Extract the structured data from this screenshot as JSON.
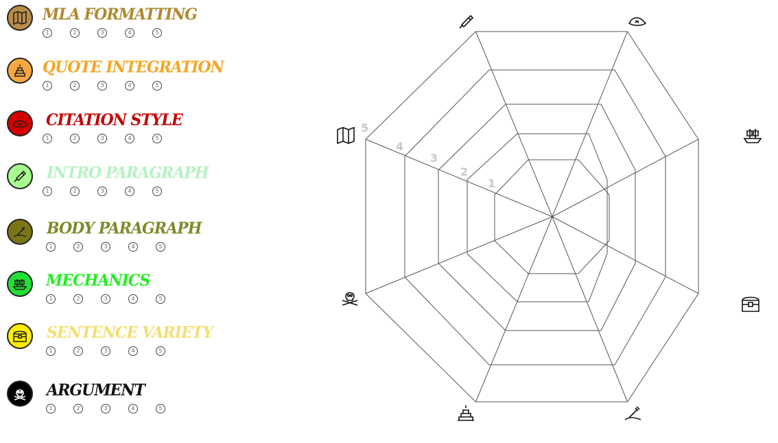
{
  "criteria": [
    {
      "title": "MLA FORMATTING",
      "icon": "map-icon",
      "color": "#b0882f",
      "badge_color": "#b98c47",
      "ratings": [
        "1",
        "2",
        "3",
        "4",
        "5"
      ]
    },
    {
      "title": "QUOTE INTEGRATION",
      "icon": "treasure-pile-icon",
      "color": "#f5a623",
      "badge_color": "#f7a741",
      "ratings": [
        "1",
        "2",
        "3",
        "4",
        "5"
      ]
    },
    {
      "title": "CITATION STYLE",
      "icon": "pirate-hat-icon",
      "color": "#c40000",
      "badge_color": "#d40000",
      "ratings": [
        "1",
        "2",
        "3",
        "4",
        "5"
      ]
    },
    {
      "title": "INTRO PARAGRAPH",
      "icon": "spyglass-icon",
      "color": "#b6f2c2",
      "badge_color": "#a7ff8f",
      "ratings": [
        "1",
        "2",
        "3",
        "4",
        "5"
      ]
    },
    {
      "title": "BODY PARAGRAPH",
      "icon": "bottle-message-icon",
      "color": "#7f8a2a",
      "badge_color": "#7b7516",
      "ratings": [
        "1",
        "2",
        "3",
        "4",
        "5"
      ]
    },
    {
      "title": "MECHANICS",
      "icon": "pirate-ship-icon",
      "color": "#22ee22",
      "badge_color": "#22e033",
      "ratings": [
        "1",
        "2",
        "3",
        "4",
        "5"
      ]
    },
    {
      "title": "SENTENCE VARIETY",
      "icon": "treasure-chest-icon",
      "color": "#f2df74",
      "badge_color": "#ffee00",
      "ratings": [
        "1",
        "2",
        "3",
        "4",
        "5"
      ]
    },
    {
      "title": "ARGUMENT",
      "icon": "skull-crossbones-icon",
      "color": "#111111",
      "badge_color": "#000000",
      "ratings": [
        "1",
        "2",
        "3",
        "4",
        "5"
      ]
    }
  ],
  "radar": {
    "ring_labels": [
      "1",
      "2",
      "3",
      "4",
      "5"
    ],
    "axis_icons": [
      "spyglass-icon",
      "pirate-hat-icon",
      "pirate-ship-icon",
      "treasure-chest-icon",
      "bottle-message-icon",
      "treasure-pile-icon",
      "skull-crossbones-icon",
      "map-icon"
    ]
  }
}
